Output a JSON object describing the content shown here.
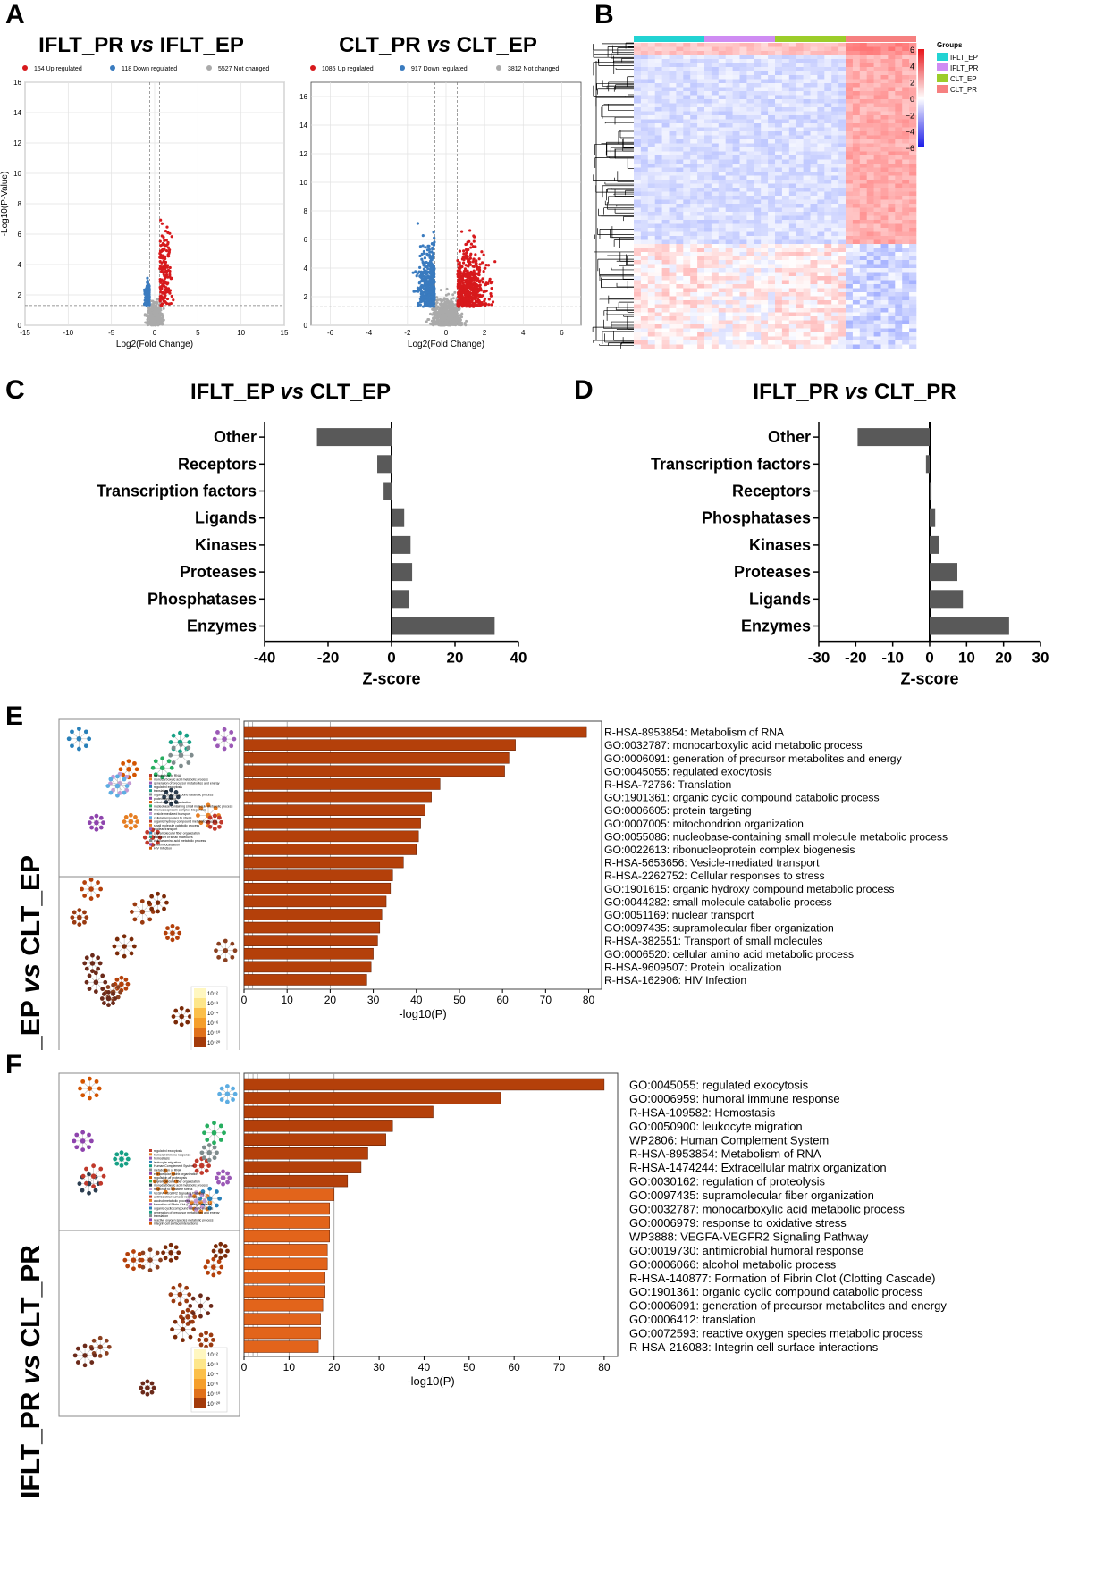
{
  "panel_letters": {
    "a": "A",
    "b": "B",
    "c": "C",
    "d": "D",
    "e": "E",
    "f": "F"
  },
  "colors": {
    "up": "#d7191c",
    "down": "#3a7bbf",
    "nc": "#aaaaaa",
    "bar_gray": "#595959",
    "bar_e": "#b4400a",
    "bar_f_dark": "#b4400a",
    "bar_f_light": "#e2641b",
    "iflt_ep": "#22d3d3",
    "iflt_pr": "#cf8cf3",
    "clt_ep": "#9ccd2a",
    "clt_pr": "#f68080"
  },
  "chart_data": [
    {
      "id": "A1",
      "type": "scatter",
      "title_parts": [
        "IFLT_PR ",
        "vs",
        " IFLT_EP"
      ],
      "legend": [
        "154 Up regulated",
        "118 Down regulated",
        "5527 Not changed"
      ],
      "xlabel": "Log2(Fold Change)",
      "ylabel": "-Log10(P-Value)",
      "xlim": [
        -15,
        15
      ],
      "ylim": [
        0,
        16
      ],
      "xticks": [
        "-15",
        "-10",
        "-5",
        "0",
        "5",
        "10",
        "15"
      ],
      "yticks": [
        "0",
        "2",
        "4",
        "6",
        "8",
        "10",
        "12",
        "14",
        "16"
      ],
      "threshold_y": 1.3,
      "threshold_x": [
        -0.58,
        0.58
      ],
      "counts": {
        "up": 154,
        "down": 118,
        "not_changed": 5527
      }
    },
    {
      "id": "A2",
      "type": "scatter",
      "title_parts": [
        "CLT_PR ",
        "vs",
        " CLT_EP"
      ],
      "legend": [
        "1085 Up regulated",
        "917 Down regulated",
        "3812 Not changed"
      ],
      "xlabel": "Log2(Fold Change)",
      "ylabel": "-Log10(P-Value)",
      "xlim": [
        -7,
        7
      ],
      "ylim": [
        0,
        17
      ],
      "xticks": [
        "-6",
        "-4",
        "-2",
        "0",
        "2",
        "4",
        "6"
      ],
      "yticks": [
        "0",
        "2",
        "4",
        "6",
        "8",
        "10",
        "12",
        "14",
        "16"
      ],
      "threshold_y": 1.3,
      "threshold_x": [
        -0.58,
        0.58
      ],
      "counts": {
        "up": 1085,
        "down": 917,
        "not_changed": 3812
      }
    },
    {
      "id": "B",
      "type": "heatmap",
      "groups_title": "Groups",
      "groups": [
        "IFLT_EP",
        "IFLT_PR",
        "CLT_EP",
        "CLT_PR"
      ],
      "scale_ticks": [
        "6",
        "4",
        "2",
        "0",
        "−2",
        "−4",
        "−6"
      ],
      "range": [
        -6,
        6
      ]
    },
    {
      "id": "C",
      "type": "bar",
      "orientation": "horizontal",
      "title_parts": [
        "IFLT_EP ",
        "vs",
        " CLT_EP"
      ],
      "categories": [
        "Other",
        "Receptors",
        "Transcription factors",
        "Ligands",
        "Kinases",
        "Proteases",
        "Phosphatases",
        "Enzymes"
      ],
      "values": [
        -23.5,
        -4.5,
        -2.5,
        4,
        6,
        6.5,
        5.5,
        32.5
      ],
      "xlim": [
        -40,
        40
      ],
      "xticks": [
        "-40",
        "-20",
        "0",
        "20",
        "40"
      ],
      "xlabel": "Z-score"
    },
    {
      "id": "D",
      "type": "bar",
      "orientation": "horizontal",
      "title_parts": [
        "IFLT_PR ",
        "vs",
        " CLT_PR"
      ],
      "categories": [
        "Other",
        "Transcription factors",
        "Receptors",
        "Phosphatases",
        "Kinases",
        "Proteases",
        "Ligands",
        "Enzymes"
      ],
      "values": [
        -19.5,
        -1,
        0.5,
        1.5,
        2.5,
        7.5,
        9,
        21.5
      ],
      "xlim": [
        -30,
        30
      ],
      "xticks": [
        "-30",
        "-20",
        "-10",
        "0",
        "10",
        "20",
        "30"
      ],
      "xlabel": "Z-score"
    },
    {
      "id": "E",
      "type": "bar",
      "orientation": "horizontal",
      "side_label_parts": [
        "IFLT_EP ",
        "vs",
        " CLT_EP"
      ],
      "xlabel": "-log10(P)",
      "xlim": [
        0,
        83
      ],
      "xticks": [
        "0",
        "10",
        "20",
        "30",
        "40",
        "50",
        "60",
        "70",
        "80"
      ],
      "terms": [
        "R-HSA-8953854: Metabolism of RNA",
        "GO:0032787: monocarboxylic acid metabolic process",
        "GO:0006091: generation of precursor metabolites and energy",
        "GO:0045055: regulated exocytosis",
        "R-HSA-72766: Translation",
        "GO:1901361: organic cyclic compound catabolic process",
        "GO:0006605: protein targeting",
        "GO:0007005: mitochondrion organization",
        "GO:0055086: nucleobase-containing small molecule metabolic process",
        "GO:0022613: ribonucleoprotein complex biogenesis",
        "R-HSA-5653656: Vesicle-mediated transport",
        "R-HSA-2262752: Cellular responses to stress",
        "GO:1901615: organic hydroxy compound metabolic process",
        "GO:0044282: small molecule catabolic process",
        "GO:0051169: nuclear transport",
        "GO:0097435: supramolecular fiber organization",
        "R-HSA-382551: Transport of small molecules",
        "GO:0006520: cellular amino acid metabolic process",
        "R-HSA-9609507: Protein localization",
        "R-HSA-162906: HIV Infection"
      ],
      "values": [
        79.5,
        63,
        61.5,
        60.5,
        45.5,
        43.5,
        42,
        41,
        40.5,
        40,
        37,
        34.5,
        34,
        33,
        32,
        31.5,
        31,
        30,
        29.5,
        28.5
      ],
      "net_legend": [
        "metabolism of RNA",
        "monocarboxylic acid metabolic process",
        "generation of precursor metabolites and energy",
        "regulated exocytosis",
        "translation",
        "organic cyclic compound catabolic process",
        "protein targeting",
        "mitochondrion organization",
        "nucleobase-containing small molecule metabolic process",
        "ribonucleoprotein complex biogenesis",
        "vesicle-mediated transport",
        "cellular responses to stress",
        "organic hydroxy compound metabolic process",
        "small molecule catabolic process",
        "nuclear transport",
        "supramolecular fiber organization",
        "transport of small molecules",
        "cellular amino acid metabolic process",
        "protein localization",
        "HIV Infection"
      ],
      "pval_legend": [
        "10⁻²",
        "10⁻³",
        "10⁻⁴",
        "10⁻⁶",
        "10⁻¹⁰",
        "10⁻²⁰"
      ]
    },
    {
      "id": "F",
      "type": "bar",
      "orientation": "horizontal",
      "side_label_parts": [
        "IFLT_PR ",
        "vs",
        " CLT_PR"
      ],
      "xlabel": "-log10(P)",
      "xlim": [
        0,
        83
      ],
      "xticks": [
        "0",
        "10",
        "20",
        "30",
        "40",
        "50",
        "60",
        "70",
        "80"
      ],
      "terms": [
        "GO:0045055: regulated exocytosis",
        "GO:0006959: humoral immune response",
        "R-HSA-109582: Hemostasis",
        "GO:0050900: leukocyte migration",
        "WP2806: Human Complement System",
        "R-HSA-8953854: Metabolism of RNA",
        "R-HSA-1474244: Extracellular matrix organization",
        "GO:0030162: regulation of proteolysis",
        "GO:0097435: supramolecular fiber organization",
        "GO:0032787: monocarboxylic acid metabolic process",
        "GO:0006979: response to oxidative stress",
        "WP3888: VEGFA-VEGFR2 Signaling Pathway",
        "GO:0019730: antimicrobial humoral response",
        "GO:0006066: alcohol metabolic process",
        "R-HSA-140877: Formation of Fibrin Clot (Clotting Cascade)",
        "GO:1901361: organic cyclic compound catabolic process",
        "GO:0006091: generation of precursor metabolites and energy",
        "GO:0006412: translation",
        "GO:0072593: reactive oxygen species metabolic process",
        "R-HSA-216083: Integrin cell surface interactions"
      ],
      "values": [
        80,
        57,
        42,
        33,
        31.5,
        27.5,
        26,
        23,
        20,
        19,
        19,
        19,
        18.5,
        18.5,
        18,
        18,
        17.5,
        17,
        17,
        16.5
      ],
      "net_legend": [
        "regulated exocytosis",
        "humoral immune response",
        "hemostasis",
        "leukocyte migration",
        "Human Complement System",
        "metabolism of RNA",
        "extracellular matrix organization",
        "regulation of proteolysis",
        "supramolecular fiber organization",
        "monocarboxylic acid metabolic process",
        "response to oxidative stress",
        "VEGFA-VEGFR2 Signaling Pathway",
        "antimicrobial humoral response",
        "alcohol metabolic process",
        "formation of Fibrin Clot (Clotting Cascade)",
        "organic cyclic compound catabolic process",
        "generation of precursor metabolites and energy",
        "translation",
        "reactive oxygen species metabolic process",
        "integrin cell surface interactions"
      ],
      "pval_legend": [
        "10⁻²",
        "10⁻³",
        "10⁻⁴",
        "10⁻⁶",
        "10⁻¹⁰",
        "10⁻²⁰"
      ]
    }
  ]
}
